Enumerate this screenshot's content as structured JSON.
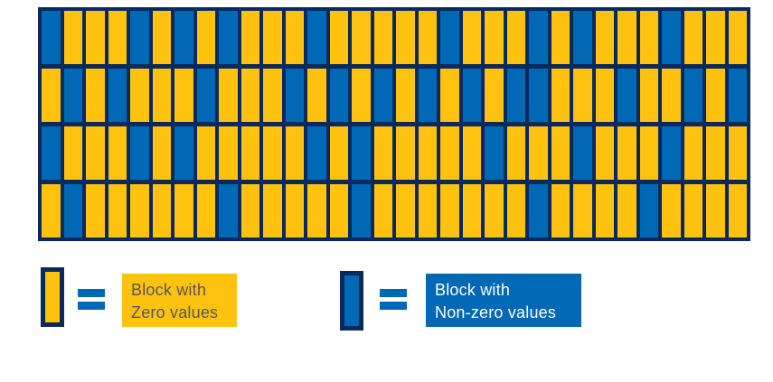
{
  "colors": {
    "background": "#FFFFFF",
    "zero_block": "#FFC20E",
    "nonzero_block": "#0068B5",
    "grid_border": "#0A2A5E",
    "equals_sign": "#0068B5",
    "zero_label_text": "#55565A",
    "nonzero_label_text": "#FFFFFF"
  },
  "grid": {
    "rows": 4,
    "cols": 32,
    "encoding": {
      "0": "block with zero values (yellow)",
      "1": "block with non-zero values (blue)"
    },
    "pattern": [
      "10001010100010000010001010001000",
      "01010001000101010101011000100101",
      "10001010000010100000100010001000",
      "01000000100000100000001000010000"
    ]
  },
  "legend": {
    "zero": {
      "line1": "Block with",
      "line2": "Zero values"
    },
    "nonzero": {
      "line1": "Block with",
      "line2": "Non-zero values"
    }
  }
}
